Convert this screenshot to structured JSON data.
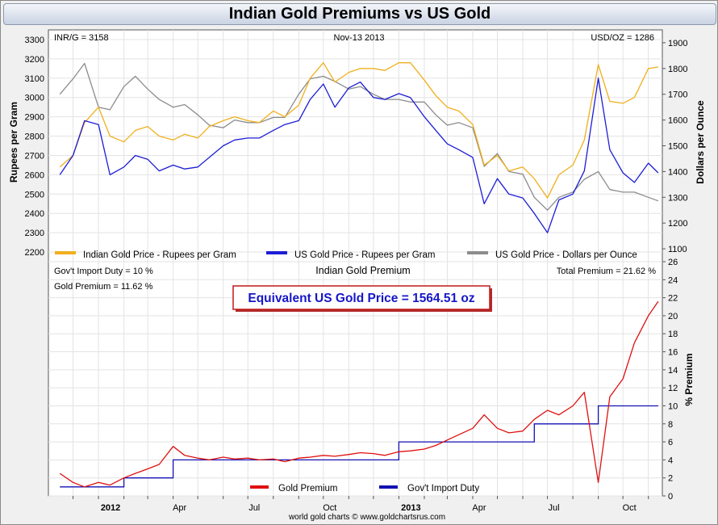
{
  "title": "Indian Gold Premiums vs US Gold",
  "top_panel": {
    "left_info": "INR/G = 3158",
    "center_info": "Nov-13  2013",
    "right_info": "USD/OZ = 1286",
    "left_axis_label": "Rupees per Gram",
    "right_axis_label": "Dollars per Ounce",
    "left_ticks": [
      "2200",
      "2300",
      "2400",
      "2500",
      "2600",
      "2700",
      "2800",
      "2900",
      "3000",
      "3100",
      "3200",
      "3300"
    ],
    "right_ticks": [
      "1100",
      "1200",
      "1300",
      "1400",
      "1500",
      "1600",
      "1700",
      "1800",
      "1900"
    ],
    "legend": [
      {
        "label": "Indian Gold Price - Rupees per Gram",
        "color": "#f0b01e"
      },
      {
        "label": "US Gold Price - Rupees per Gram",
        "color": "#1d1dd6"
      },
      {
        "label": "US Gold Price - Dollars per Ounce",
        "color": "#8c8c8c"
      }
    ]
  },
  "bottom_panel": {
    "left_info_1": "Gov't Import Duty = 10 %",
    "left_info_2": "Gold Premium = 11.62 %",
    "center_title": "Indian Gold Premium",
    "right_info": "Total Premium = 21.62 %",
    "callout": "Equivalent US Gold Price = 1564.51 oz",
    "right_axis_label": "% Premium",
    "right_ticks": [
      "0",
      "2",
      "4",
      "6",
      "8",
      "10",
      "12",
      "14",
      "16",
      "18",
      "20",
      "22",
      "24",
      "26"
    ],
    "legend": [
      {
        "label": "Gold Premium",
        "color": "#e01010"
      },
      {
        "label": "Gov't Import Duty",
        "color": "#1212b4"
      }
    ]
  },
  "x_axis": {
    "labels": [
      "2012",
      "Apr",
      "Jul",
      "Oct",
      "2013",
      "Apr",
      "Jul",
      "Oct"
    ]
  },
  "footer": "world gold charts © www.goldchartsrus.com",
  "chart_data": [
    {
      "type": "line",
      "title": "",
      "ylabel": "Rupees per Gram",
      "y2label": "Dollars per Ounce",
      "ylim": [
        2150,
        3350
      ],
      "y2lim": [
        1050,
        1950
      ],
      "x": [
        "2011-11-15",
        "2011-12-01",
        "2011-12-15",
        "2012-01-01",
        "2012-01-15",
        "2012-02-01",
        "2012-02-15",
        "2012-03-01",
        "2012-03-15",
        "2012-04-01",
        "2012-04-15",
        "2012-05-01",
        "2012-05-15",
        "2012-06-01",
        "2012-06-15",
        "2012-07-01",
        "2012-07-15",
        "2012-08-01",
        "2012-08-15",
        "2012-09-01",
        "2012-09-15",
        "2012-10-01",
        "2012-10-15",
        "2012-11-01",
        "2012-11-15",
        "2012-12-01",
        "2012-12-15",
        "2013-01-01",
        "2013-01-15",
        "2013-02-01",
        "2013-02-15",
        "2013-03-01",
        "2013-03-15",
        "2013-04-01",
        "2013-04-15",
        "2013-05-01",
        "2013-05-15",
        "2013-06-01",
        "2013-06-15",
        "2013-07-01",
        "2013-07-15",
        "2013-08-01",
        "2013-08-15",
        "2013-09-01",
        "2013-09-15",
        "2013-10-01",
        "2013-10-15",
        "2013-11-01",
        "2013-11-13"
      ],
      "series": [
        {
          "name": "Indian Gold Price - Rupees per Gram",
          "axis": "left",
          "color": "#f0b01e",
          "values": [
            2640,
            2700,
            2870,
            2950,
            2800,
            2770,
            2830,
            2850,
            2800,
            2780,
            2810,
            2790,
            2850,
            2880,
            2900,
            2880,
            2870,
            2930,
            2900,
            2960,
            3100,
            3180,
            3080,
            3130,
            3150,
            3150,
            3140,
            3180,
            3180,
            3090,
            3010,
            2950,
            2930,
            2860,
            2650,
            2700,
            2620,
            2640,
            2580,
            2480,
            2600,
            2650,
            2780,
            3170,
            2980,
            2970,
            3000,
            3150,
            3158
          ]
        },
        {
          "name": "US Gold Price - Rupees per Gram",
          "axis": "left",
          "color": "#1d1dd6",
          "values": [
            2600,
            2700,
            2880,
            2860,
            2600,
            2640,
            2700,
            2680,
            2620,
            2650,
            2630,
            2640,
            2690,
            2750,
            2780,
            2790,
            2790,
            2830,
            2860,
            2880,
            2990,
            3070,
            2950,
            3050,
            3080,
            3000,
            2990,
            3020,
            3000,
            2900,
            2830,
            2760,
            2730,
            2690,
            2450,
            2580,
            2500,
            2480,
            2400,
            2300,
            2470,
            2500,
            2620,
            3100,
            2730,
            2610,
            2560,
            2660,
            2610
          ]
        },
        {
          "name": "US Gold Price - Dollars per Ounce",
          "axis": "right",
          "color": "#8c8c8c",
          "values": [
            1700,
            1760,
            1820,
            1650,
            1640,
            1730,
            1770,
            1720,
            1680,
            1650,
            1660,
            1620,
            1580,
            1570,
            1600,
            1590,
            1590,
            1610,
            1610,
            1700,
            1760,
            1770,
            1750,
            1720,
            1730,
            1700,
            1680,
            1680,
            1670,
            1670,
            1620,
            1580,
            1590,
            1570,
            1420,
            1470,
            1400,
            1390,
            1300,
            1250,
            1300,
            1320,
            1370,
            1400,
            1330,
            1320,
            1320,
            1300,
            1286
          ]
        }
      ]
    },
    {
      "type": "line",
      "title": "Indian Gold Premium",
      "ylabel": "% Premium",
      "ylim": [
        0,
        26
      ],
      "x": [
        "2011-11-15",
        "2011-12-01",
        "2011-12-15",
        "2012-01-01",
        "2012-01-15",
        "2012-02-01",
        "2012-02-15",
        "2012-03-01",
        "2012-03-15",
        "2012-04-01",
        "2012-04-15",
        "2012-05-01",
        "2012-05-15",
        "2012-06-01",
        "2012-06-15",
        "2012-07-01",
        "2012-07-15",
        "2012-08-01",
        "2012-08-15",
        "2012-09-01",
        "2012-09-15",
        "2012-10-01",
        "2012-10-15",
        "2012-11-01",
        "2012-11-15",
        "2012-12-01",
        "2012-12-15",
        "2013-01-01",
        "2013-01-15",
        "2013-02-01",
        "2013-02-15",
        "2013-03-01",
        "2013-03-15",
        "2013-04-01",
        "2013-04-15",
        "2013-05-01",
        "2013-05-15",
        "2013-06-01",
        "2013-06-15",
        "2013-07-01",
        "2013-07-15",
        "2013-08-01",
        "2013-08-15",
        "2013-09-01",
        "2013-09-15",
        "2013-10-01",
        "2013-10-15",
        "2013-11-01",
        "2013-11-13"
      ],
      "series": [
        {
          "name": "Gold Premium",
          "color": "#e01010",
          "values": [
            2.5,
            1.5,
            1.0,
            1.5,
            1.2,
            2.0,
            2.5,
            3.0,
            3.5,
            5.5,
            4.5,
            4.2,
            4.0,
            4.3,
            4.1,
            4.2,
            4.0,
            4.1,
            3.8,
            4.2,
            4.3,
            4.5,
            4.4,
            4.6,
            4.8,
            4.7,
            4.5,
            4.9,
            5.0,
            5.2,
            5.6,
            6.2,
            6.8,
            7.5,
            9.0,
            7.5,
            7.0,
            7.2,
            8.5,
            9.5,
            9.0,
            10.0,
            11.5,
            1.5,
            11.0,
            13.0,
            17.0,
            20.0,
            21.6
          ]
        },
        {
          "name": "Gov't Import Duty",
          "color": "#1212b4",
          "values": [
            1,
            1,
            1,
            1,
            1,
            2,
            2,
            2,
            2,
            4,
            4,
            4,
            4,
            4,
            4,
            4,
            4,
            4,
            4,
            4,
            4,
            4,
            4,
            4,
            4,
            4,
            4,
            6,
            6,
            6,
            6,
            6,
            6,
            6,
            6,
            6,
            6,
            6,
            8,
            8,
            8,
            8,
            8,
            10,
            10,
            10,
            10,
            10,
            10
          ]
        }
      ]
    }
  ]
}
